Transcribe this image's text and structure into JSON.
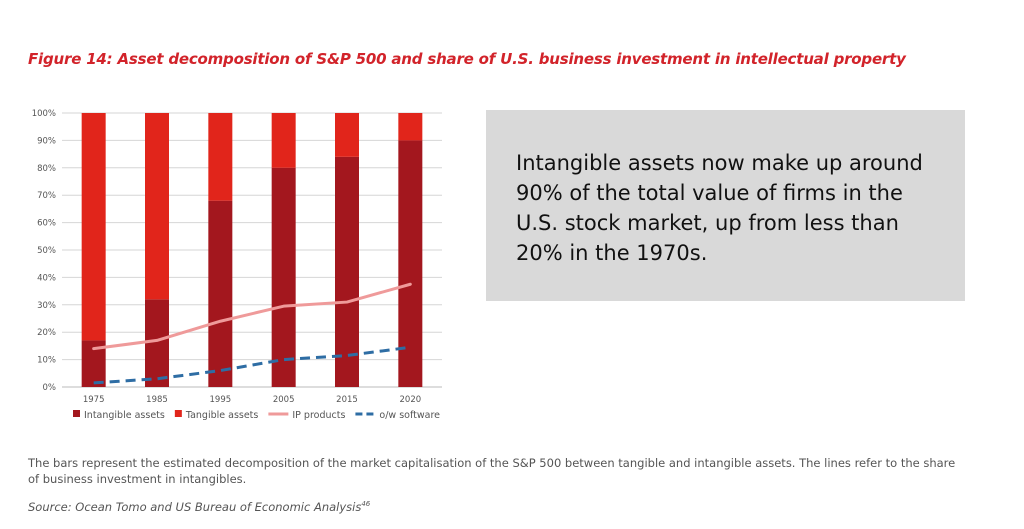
{
  "figure": {
    "title": "Figure 14: Asset decomposition of S&P 500 and share of U.S. business investment in intellectual property",
    "callout": "Intangible assets now make up around 90% of the total value of firms in the U.S. stock market, up from less than 20% in the 1970s.",
    "footnote": "The bars represent the estimated decomposition of the market capitalisation of the S&P 500 between tangible and intangible assets. The lines refer to the share of business investment in intangibles.",
    "source": "Source: Ocean Tomo and US Bureau of Economic Analysis",
    "source_ref": "46"
  },
  "chart_data": {
    "type": "bar",
    "stacked": true,
    "categories": [
      "1975",
      "1985",
      "1995",
      "2005",
      "2015",
      "2020"
    ],
    "ylim": [
      0,
      100
    ],
    "yticks": [
      "0%",
      "10%",
      "20%",
      "30%",
      "40%",
      "50%",
      "60%",
      "70%",
      "80%",
      "90%",
      "100%"
    ],
    "grid": true,
    "legend_position": "bottom",
    "series": [
      {
        "name": "Intangible assets",
        "kind": "bar",
        "color": "#a3171e",
        "values": [
          17,
          32,
          68,
          80,
          84,
          90
        ]
      },
      {
        "name": "Tangible assets",
        "kind": "bar",
        "color": "#e1251b",
        "values": [
          83,
          68,
          32,
          20,
          16,
          10
        ]
      },
      {
        "name": "IP products",
        "kind": "line",
        "color": "#ef9a9a",
        "values": [
          14,
          17,
          24,
          29.5,
          31,
          37.5
        ]
      },
      {
        "name": "o/w software",
        "kind": "line",
        "dashed": true,
        "color": "#2e6da4",
        "values": [
          1.5,
          3,
          6,
          10,
          11.5,
          14.5
        ]
      }
    ]
  }
}
